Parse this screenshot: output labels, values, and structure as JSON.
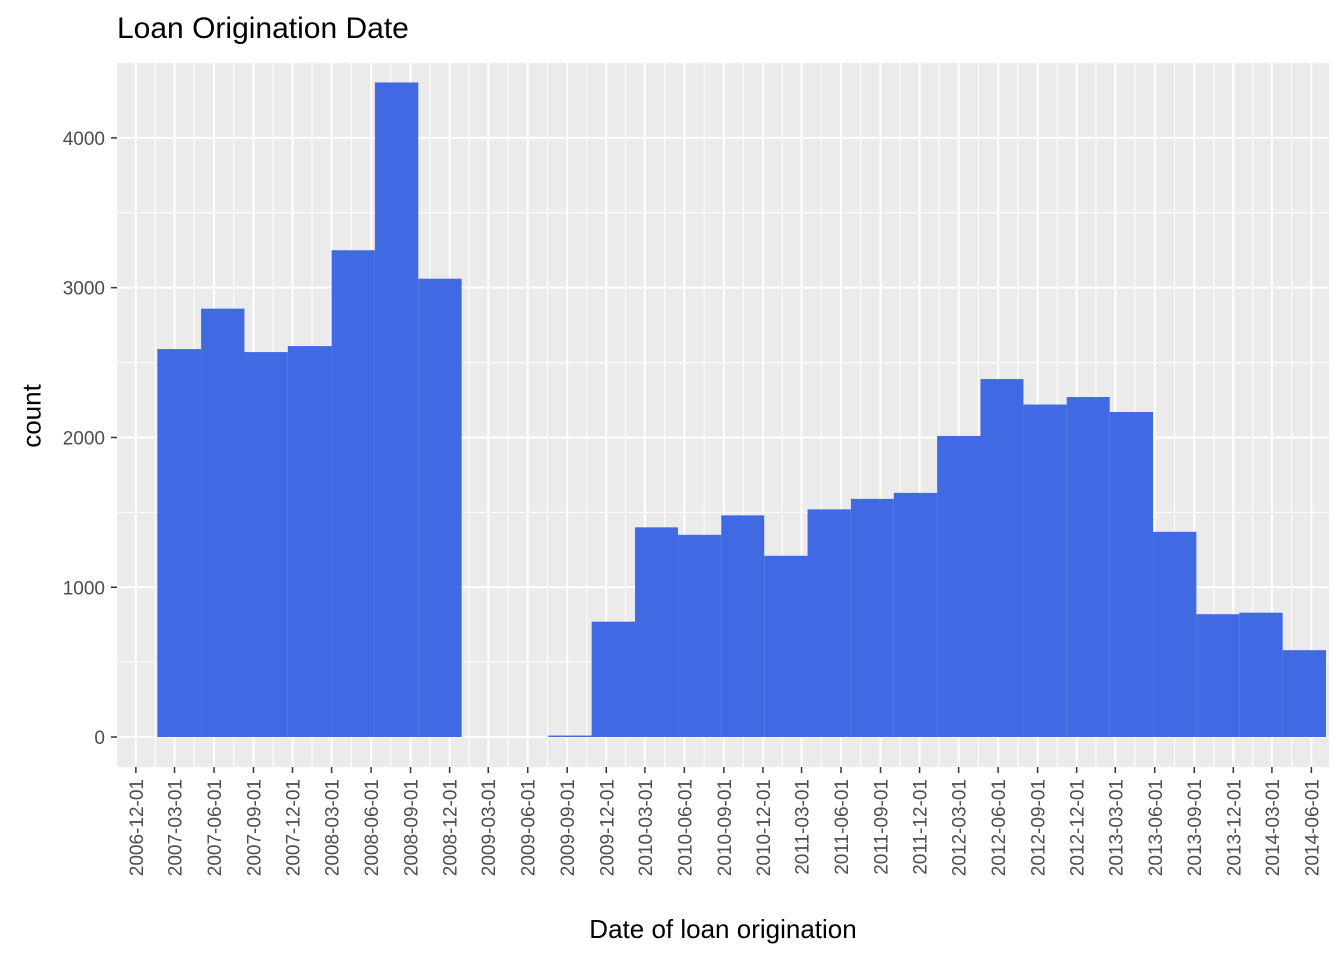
{
  "chart_data": {
    "type": "bar",
    "title": "Loan Origination Date",
    "xlabel": "Date of loan origination",
    "ylabel": "count",
    "bar_color": "#4169E1",
    "panel_color": "#EBEBEB",
    "grid_color": "#FFFFFF",
    "grid": true,
    "ylim": [
      -200,
      4500
    ],
    "y_ticks": [
      0,
      1000,
      2000,
      3000,
      4000
    ],
    "xlim": [
      "2006-10-18",
      "2014-07-12"
    ],
    "x_ticks": [
      "2006-12-01",
      "2007-03-01",
      "2007-06-01",
      "2007-09-01",
      "2007-12-01",
      "2008-03-01",
      "2008-06-01",
      "2008-09-01",
      "2008-12-01",
      "2009-03-01",
      "2009-06-01",
      "2009-09-01",
      "2009-12-01",
      "2010-03-01",
      "2010-06-01",
      "2010-09-01",
      "2010-12-01",
      "2011-03-01",
      "2011-06-01",
      "2011-09-01",
      "2011-12-01",
      "2012-03-01",
      "2012-06-01",
      "2012-09-01",
      "2012-12-01",
      "2013-03-01",
      "2013-06-01",
      "2013-09-01",
      "2013-12-01",
      "2014-03-01",
      "2014-06-01"
    ],
    "bins": [
      {
        "start": "2007-01-20",
        "end": "2007-05-02",
        "count": 2590
      },
      {
        "start": "2007-05-02",
        "end": "2007-08-11",
        "count": 2860
      },
      {
        "start": "2007-08-11",
        "end": "2007-11-20",
        "count": 2570
      },
      {
        "start": "2007-11-20",
        "end": "2008-03-01",
        "count": 2610
      },
      {
        "start": "2008-03-01",
        "end": "2008-06-10",
        "count": 3250
      },
      {
        "start": "2008-06-10",
        "end": "2008-09-19",
        "count": 4370
      },
      {
        "start": "2008-09-19",
        "end": "2008-12-29",
        "count": 3060
      },
      {
        "start": "2008-12-29",
        "end": "2009-04-09",
        "count": 0
      },
      {
        "start": "2009-04-09",
        "end": "2009-07-19",
        "count": 0
      },
      {
        "start": "2009-07-19",
        "end": "2009-10-28",
        "count": 10
      },
      {
        "start": "2009-10-28",
        "end": "2010-02-06",
        "count": 770
      },
      {
        "start": "2010-02-06",
        "end": "2010-05-17",
        "count": 1400
      },
      {
        "start": "2010-05-17",
        "end": "2010-08-26",
        "count": 1350
      },
      {
        "start": "2010-08-26",
        "end": "2010-12-04",
        "count": 1480
      },
      {
        "start": "2010-12-04",
        "end": "2011-03-15",
        "count": 1210
      },
      {
        "start": "2011-03-15",
        "end": "2011-06-24",
        "count": 1520
      },
      {
        "start": "2011-06-24",
        "end": "2011-10-02",
        "count": 1590
      },
      {
        "start": "2011-10-02",
        "end": "2012-01-11",
        "count": 1630
      },
      {
        "start": "2012-01-11",
        "end": "2012-04-21",
        "count": 2010
      },
      {
        "start": "2012-04-21",
        "end": "2012-07-30",
        "count": 2390
      },
      {
        "start": "2012-07-30",
        "end": "2012-11-08",
        "count": 2220
      },
      {
        "start": "2012-11-08",
        "end": "2013-02-16",
        "count": 2270
      },
      {
        "start": "2013-02-16",
        "end": "2013-05-28",
        "count": 2170
      },
      {
        "start": "2013-05-28",
        "end": "2013-09-06",
        "count": 1370
      },
      {
        "start": "2013-09-06",
        "end": "2013-12-15",
        "count": 820
      },
      {
        "start": "2013-12-15",
        "end": "2014-03-26",
        "count": 830
      },
      {
        "start": "2014-03-26",
        "end": "2014-07-05",
        "count": 580
      }
    ]
  }
}
